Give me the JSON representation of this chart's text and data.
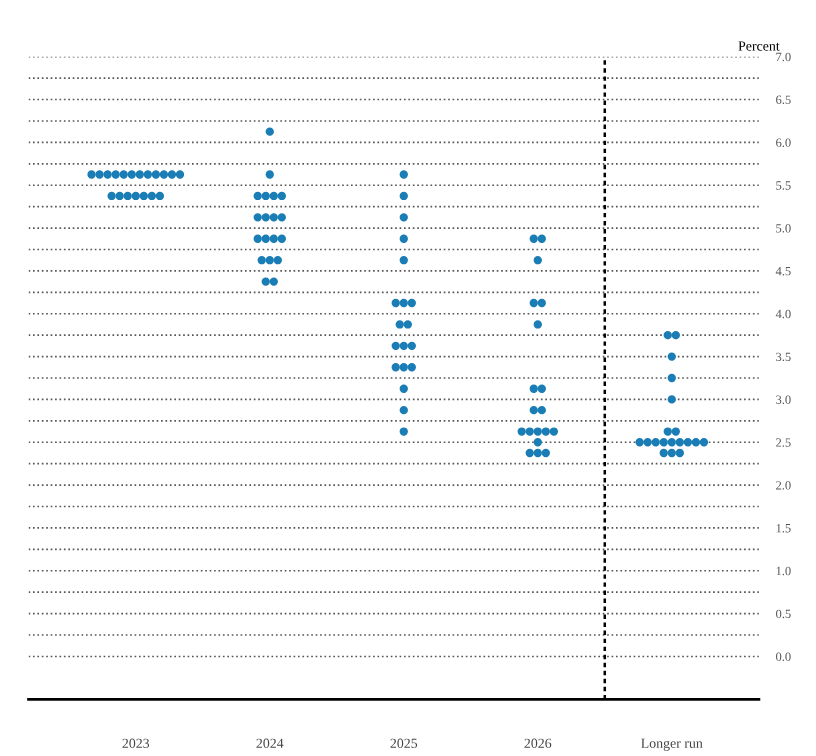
{
  "chart_data": {
    "type": "scatter",
    "ylabel": "Percent",
    "categories": [
      "2023",
      "2024",
      "2025",
      "2026",
      "Longer run"
    ],
    "marker": "circle",
    "series": [
      {
        "color": "#1a7db5",
        "values": [
          5.625,
          6.125,
          5.625,
          4.875,
          3.75
        ]
      },
      {
        "color": "#1a7db5",
        "values": [
          5.625,
          5.625,
          5.375,
          4.875,
          3.75
        ]
      },
      {
        "color": "#1a7db5",
        "values": [
          5.625,
          5.375,
          5.125,
          4.625,
          3.5
        ]
      },
      {
        "color": "#1a7db5",
        "values": [
          5.625,
          5.375,
          4.875,
          4.125,
          3.25
        ]
      },
      {
        "color": "#1a7db5",
        "values": [
          5.625,
          5.375,
          4.625,
          4.125,
          3.0
        ]
      },
      {
        "color": "#1a7db5",
        "values": [
          5.625,
          5.375,
          4.125,
          3.875,
          2.625
        ]
      },
      {
        "color": "#1a7db5",
        "values": [
          5.625,
          5.125,
          4.125,
          3.125,
          2.625
        ]
      },
      {
        "color": "#1a7db5",
        "values": [
          5.625,
          5.125,
          4.125,
          3.125,
          2.5
        ]
      },
      {
        "color": "#1a7db5",
        "values": [
          5.625,
          5.125,
          3.875,
          2.875,
          2.5
        ]
      },
      {
        "color": "#1a7db5",
        "values": [
          5.625,
          5.125,
          3.875,
          2.875,
          2.5
        ]
      },
      {
        "color": "#1a7db5",
        "values": [
          5.625,
          4.875,
          3.625,
          2.625,
          2.5
        ]
      },
      {
        "color": "#1a7db5",
        "values": [
          5.625,
          4.875,
          3.625,
          2.625,
          2.5
        ]
      },
      {
        "color": "#1a7db5",
        "values": [
          5.375,
          4.875,
          3.625,
          2.625,
          2.5
        ]
      },
      {
        "color": "#1a7db5",
        "values": [
          5.375,
          4.875,
          3.375,
          2.625,
          2.5
        ]
      },
      {
        "color": "#1a7db5",
        "values": [
          5.375,
          4.625,
          3.375,
          2.625,
          2.5
        ]
      },
      {
        "color": "#1a7db5",
        "values": [
          5.375,
          4.625,
          3.375,
          2.5,
          2.5
        ]
      },
      {
        "color": "#1a7db5",
        "values": [
          5.375,
          4.625,
          3.125,
          2.375,
          2.375
        ]
      },
      {
        "color": "#1a7db5",
        "values": [
          5.375,
          4.375,
          2.875,
          2.375,
          2.375
        ]
      },
      {
        "color": "#1a7db5",
        "values": [
          5.375,
          4.375,
          2.625,
          2.375,
          2.375
        ]
      }
    ],
    "ylim": [
      -0.5,
      7
    ],
    "yticks": [
      {
        "value": 0,
        "label": "0.0"
      },
      {
        "value": 0.25,
        "label": null
      },
      0.5,
      {
        "value": 0.75,
        "label": null
      },
      {
        "value": 1,
        "label": "1.0"
      },
      {
        "value": 1.25,
        "label": null
      },
      1.5,
      {
        "value": 1.75,
        "label": null
      },
      {
        "value": 2,
        "label": "2.0"
      },
      {
        "value": 2.25,
        "label": null
      },
      2.5,
      {
        "value": 2.75,
        "label": null
      },
      {
        "value": 3,
        "label": "3.0"
      },
      {
        "value": 3.25,
        "label": null
      },
      3.5,
      {
        "value": 3.75,
        "label": null
      },
      {
        "value": 4,
        "label": "4.0"
      },
      {
        "value": 4.25,
        "label": null
      },
      4.5,
      {
        "value": 4.75,
        "label": null
      },
      {
        "value": 5,
        "label": "5.0"
      },
      {
        "value": 5.25,
        "label": null
      },
      5.5,
      {
        "value": 5.75,
        "label": null
      },
      {
        "value": 6,
        "label": "6.0"
      },
      {
        "value": 6.25,
        "label": null
      },
      6.5,
      {
        "value": 6.75,
        "label": null
      },
      {
        "value": 7,
        "label": "7.0"
      }
    ],
    "grid": "y"
  }
}
